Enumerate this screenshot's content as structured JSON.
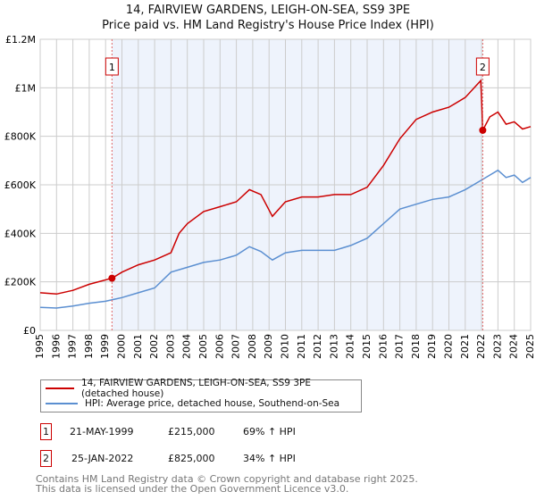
{
  "title_line1": "14, FAIRVIEW GARDENS, LEIGH-ON-SEA, SS9 3PE",
  "title_line2": "Price paid vs. HM Land Registry's House Price Index (HPI)",
  "colors": {
    "property": "#cc0000",
    "hpi": "#5b8fd1",
    "shade": "#eef3fc"
  },
  "chart_data": {
    "type": "line",
    "ylim": [
      0,
      1200000
    ],
    "xlim": [
      1995,
      2025
    ],
    "yticks": [
      {
        "v": 0,
        "label": "£0"
      },
      {
        "v": 200000,
        "label": "£200K"
      },
      {
        "v": 400000,
        "label": "£400K"
      },
      {
        "v": 600000,
        "label": "£600K"
      },
      {
        "v": 800000,
        "label": "£800K"
      },
      {
        "v": 1000000,
        "label": "£1M"
      },
      {
        "v": 1200000,
        "label": "£1.2M"
      }
    ],
    "xticks": [
      "1995",
      "1996",
      "1997",
      "1998",
      "1999",
      "2000",
      "2001",
      "2002",
      "2003",
      "2004",
      "2005",
      "2006",
      "2007",
      "2008",
      "2009",
      "2010",
      "2011",
      "2012",
      "2013",
      "2014",
      "2015",
      "2016",
      "2017",
      "2018",
      "2019",
      "2020",
      "2021",
      "2022",
      "2023",
      "2024",
      "2025"
    ],
    "series": [
      {
        "name": "14, FAIRVIEW GARDENS, LEIGH-ON-SEA, SS9 3PE (detached house)",
        "key": "property",
        "x": [
          1995,
          1996,
          1997,
          1998,
          1999.39,
          2000,
          2001,
          2002,
          2003,
          2003.5,
          2004,
          2005,
          2006,
          2007,
          2007.8,
          2008.5,
          2009.2,
          2010,
          2011,
          2012,
          2013,
          2014,
          2015,
          2016,
          2017,
          2018,
          2019,
          2020,
          2021,
          2021.95,
          2022.07,
          2022.5,
          2023,
          2023.5,
          2024,
          2024.5,
          2025
        ],
        "y": [
          155000,
          150000,
          165000,
          190000,
          215000,
          240000,
          270000,
          290000,
          320000,
          400000,
          440000,
          490000,
          510000,
          530000,
          580000,
          560000,
          470000,
          530000,
          550000,
          550000,
          560000,
          560000,
          590000,
          680000,
          790000,
          870000,
          900000,
          920000,
          960000,
          1030000,
          825000,
          880000,
          900000,
          850000,
          860000,
          830000,
          840000
        ]
      },
      {
        "name": "HPI: Average price, detached house, Southend-on-Sea",
        "key": "hpi",
        "x": [
          1995,
          1996,
          1997,
          1998,
          1999,
          2000,
          2001,
          2002,
          2003,
          2004,
          2005,
          2006,
          2007,
          2007.8,
          2008.5,
          2009.2,
          2010,
          2011,
          2012,
          2013,
          2014,
          2015,
          2016,
          2017,
          2018,
          2019,
          2020,
          2021,
          2022,
          2022.5,
          2023,
          2023.5,
          2024,
          2024.5,
          2025
        ],
        "y": [
          95000,
          92000,
          100000,
          112000,
          120000,
          135000,
          155000,
          175000,
          240000,
          260000,
          280000,
          290000,
          310000,
          345000,
          325000,
          290000,
          320000,
          330000,
          330000,
          330000,
          350000,
          380000,
          440000,
          500000,
          520000,
          540000,
          550000,
          580000,
          620000,
          640000,
          660000,
          630000,
          640000,
          610000,
          630000
        ]
      }
    ],
    "sales": [
      {
        "label": "1",
        "x": 1999.39,
        "y": 215000
      },
      {
        "label": "2",
        "x": 2022.07,
        "y": 825000
      }
    ]
  },
  "legend": {
    "property": "14, FAIRVIEW GARDENS, LEIGH-ON-SEA, SS9 3PE (detached house)",
    "hpi": "HPI: Average price, detached house, Southend-on-Sea"
  },
  "transactions": [
    {
      "num": "1",
      "date": "21-MAY-1999",
      "price": "£215,000",
      "hpi": "69% ↑ HPI"
    },
    {
      "num": "2",
      "date": "25-JAN-2022",
      "price": "£825,000",
      "hpi": "34% ↑ HPI"
    }
  ],
  "footer": {
    "line1": "Contains HM Land Registry data © Crown copyright and database right 2025.",
    "line2": "This data is licensed under the Open Government Licence v3.0."
  }
}
